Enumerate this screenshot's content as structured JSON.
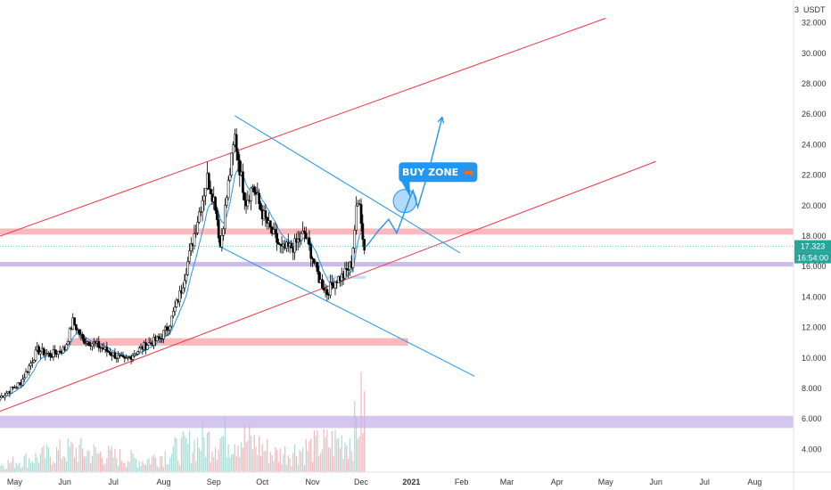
{
  "chart_data": {
    "type": "candlestick",
    "currency_label": "USDT",
    "ylim": [
      2.5,
      33.5
    ],
    "yticks": [
      "4.000",
      "6.000",
      "8.000",
      "10.000",
      "12.000",
      "14.000",
      "16.000",
      "18.000",
      "20.000",
      "22.000",
      "24.000",
      "26.000",
      "28.000",
      "30.000",
      "32.000"
    ],
    "xticks": [
      {
        "label": "May",
        "date": "2020-05-01"
      },
      {
        "label": "Jun",
        "date": "2020-06-01"
      },
      {
        "label": "Jul",
        "date": "2020-07-01"
      },
      {
        "label": "Aug",
        "date": "2020-08-01"
      },
      {
        "label": "Sep",
        "date": "2020-09-01"
      },
      {
        "label": "Oct",
        "date": "2020-10-01"
      },
      {
        "label": "Nov",
        "date": "2020-11-01"
      },
      {
        "label": "Dec",
        "date": "2020-12-01"
      },
      {
        "label": "2021",
        "date": "2021-01-01",
        "bold": true
      },
      {
        "label": "Feb",
        "date": "2021-02-01"
      },
      {
        "label": "Mar",
        "date": "2021-03-01"
      },
      {
        "label": "Apr",
        "date": "2021-04-01"
      },
      {
        "label": "May",
        "date": "2021-05-01"
      },
      {
        "label": "Jun",
        "date": "2021-06-01"
      },
      {
        "label": "Jul",
        "date": "2021-07-01"
      },
      {
        "label": "Aug",
        "date": "2021-08-01"
      }
    ],
    "xlim": [
      "2020-04-22",
      "2021-08-25"
    ],
    "price_keypoints": [
      [
        "2020-04-22",
        7.4
      ],
      [
        "2020-05-05",
        8.4
      ],
      [
        "2020-05-15",
        10.5
      ],
      [
        "2020-05-23",
        10.2
      ],
      [
        "2020-06-01",
        10.6
      ],
      [
        "2020-06-06",
        12.4
      ],
      [
        "2020-06-12",
        11.2
      ],
      [
        "2020-06-20",
        10.9
      ],
      [
        "2020-06-28",
        10.4
      ],
      [
        "2020-07-08",
        9.8
      ],
      [
        "2020-07-15",
        10.4
      ],
      [
        "2020-07-22",
        10.9
      ],
      [
        "2020-07-30",
        11.3
      ],
      [
        "2020-08-05",
        12.3
      ],
      [
        "2020-08-12",
        14.5
      ],
      [
        "2020-08-18",
        17.2
      ],
      [
        "2020-08-23",
        19.6
      ],
      [
        "2020-08-28",
        21.8
      ],
      [
        "2020-09-02",
        20.1
      ],
      [
        "2020-09-05",
        17.3
      ],
      [
        "2020-09-10",
        21.4
      ],
      [
        "2020-09-14",
        24.5
      ],
      [
        "2020-09-18",
        21.8
      ],
      [
        "2020-09-21",
        20.3
      ],
      [
        "2020-09-25",
        21.3
      ],
      [
        "2020-10-01",
        19.5
      ],
      [
        "2020-10-07",
        18.2
      ],
      [
        "2020-10-13",
        17.1
      ],
      [
        "2020-10-20",
        17.3
      ],
      [
        "2020-10-27",
        18.2
      ],
      [
        "2020-11-01",
        16.6
      ],
      [
        "2020-11-05",
        15.2
      ],
      [
        "2020-11-10",
        14.3
      ],
      [
        "2020-11-15",
        15.1
      ],
      [
        "2020-11-20",
        15.4
      ],
      [
        "2020-11-25",
        16.2
      ],
      [
        "2020-11-28",
        19.6
      ],
      [
        "2020-11-30",
        20.5
      ],
      [
        "2020-12-02",
        17.8
      ],
      [
        "2020-12-03",
        17.3
      ]
    ],
    "volume_ylim": [
      0,
      80
    ],
    "volume_keypoints": [
      [
        "2020-04-22",
        6
      ],
      [
        "2020-06-06",
        18
      ],
      [
        "2020-07-20",
        9
      ],
      [
        "2020-08-23",
        24
      ],
      [
        "2020-09-14",
        30
      ],
      [
        "2020-10-10",
        14
      ],
      [
        "2020-11-25",
        27
      ],
      [
        "2020-12-01",
        50
      ]
    ],
    "ema_lag_days": 5,
    "trendlines": [
      {
        "name": "upper-channel",
        "color": "#f23645",
        "p1": [
          "2020-04-22",
          18.0
        ],
        "p2": [
          "2021-05-01",
          32.3
        ]
      },
      {
        "name": "lower-channel",
        "color": "#f23645",
        "p1": [
          "2020-04-22",
          6.5
        ],
        "p2": [
          "2021-06-01",
          22.9
        ]
      },
      {
        "name": "falling-upper",
        "color": "#2196f3",
        "p1": [
          "2020-09-14",
          25.9
        ],
        "p2": [
          "2021-01-31",
          16.9
        ]
      },
      {
        "name": "falling-lower",
        "color": "#2196f3",
        "p1": [
          "2020-09-05",
          17.3
        ],
        "p2": [
          "2021-02-09",
          8.8
        ]
      }
    ],
    "zones": [
      {
        "name": "resistance-zone",
        "color": "#f7a1a7",
        "y1": 18.1,
        "y2": 18.5,
        "x1": "2020-04-22",
        "x2": "2021-08-25"
      },
      {
        "name": "support-zone",
        "color": "#b9a4e0",
        "y1": 16.0,
        "y2": 16.3,
        "x1": "2020-04-22",
        "x2": "2021-08-25"
      },
      {
        "name": "lower-purple-zone",
        "color": "#c6b3e6",
        "y1": 5.4,
        "y2": 6.2,
        "x1": "2020-04-22",
        "x2": "2021-08-25"
      },
      {
        "name": "lower-red-zone",
        "color": "#f7a1a7",
        "y1": 10.8,
        "y2": 11.3,
        "x1": "2020-06-02",
        "x2": "2020-12-30"
      },
      {
        "name": "blue-base-zone",
        "color": "#bbdefb",
        "y1": 15.2,
        "y2": 15.4,
        "x1": "2020-11-10",
        "x2": "2020-12-04"
      }
    ],
    "projection_path": [
      [
        "2020-12-04",
        17.3
      ],
      [
        "2020-12-12",
        18.4
      ],
      [
        "2020-12-18",
        19.1
      ],
      [
        "2020-12-23",
        18.2
      ],
      [
        "2020-12-30",
        20.2
      ],
      [
        "2021-01-02",
        21.0
      ],
      [
        "2021-01-05",
        19.9
      ],
      [
        "2021-01-12",
        22.4
      ],
      [
        "2021-01-20",
        25.8
      ]
    ],
    "buy_circle": {
      "date": "2020-12-28",
      "y": 20.3
    },
    "annotation": {
      "text": "BUY ZONE 🦐",
      "date": "2021-01-01",
      "y": 22.2,
      "color": "#2196f3"
    },
    "price_label": {
      "value": "17.323",
      "countdown": "16:54:00",
      "color": "#26a69a"
    },
    "colors": {
      "up": "#26a69a",
      "down": "#f23645",
      "candle_up": "#ffffff",
      "candle_border": "#000000",
      "ema": "#2196f3"
    }
  }
}
